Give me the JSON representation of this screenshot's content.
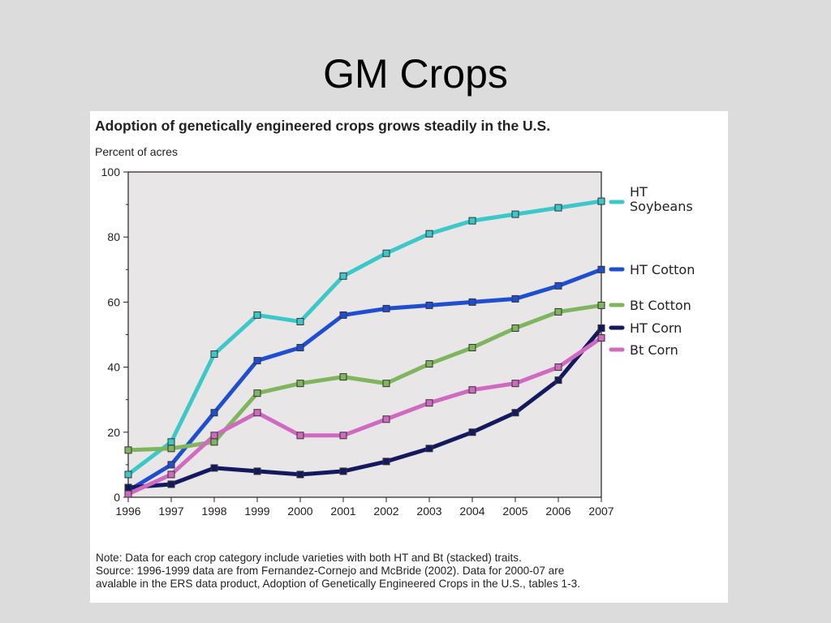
{
  "slide": {
    "title": "GM Crops"
  },
  "figure": {
    "title": "Adoption of genetically engineered crops grows steadily in the U.S.",
    "note_lines": [
      "Note: Data for each crop category include varieties with both HT and Bt (stacked) traits.",
      "Source: 1996-1999 data are from Fernandez-Cornejo and McBride (2002). Data for 2000-07 are",
      "avalable in the ERS data product, Adoption of Genetically Engineered Crops in the U.S., tables 1-3."
    ]
  },
  "chart_data": {
    "type": "line",
    "title": "Adoption of genetically engineered crops grows steadily in the U.S.",
    "ylabel": "Percent of acres",
    "xlabel": "",
    "x": [
      1996,
      1997,
      1998,
      1999,
      2000,
      2001,
      2002,
      2003,
      2004,
      2005,
      2006,
      2007
    ],
    "ylim": [
      0,
      100
    ],
    "yticks": [
      0,
      20,
      40,
      60,
      80,
      100
    ],
    "grid": false,
    "legend_placement": "right",
    "series": [
      {
        "name": "HT Soybeans",
        "color": "#3cc8c8",
        "values": [
          7,
          17,
          44,
          56,
          54,
          68,
          75,
          81,
          85,
          87,
          89,
          91
        ]
      },
      {
        "name": "HT Cotton",
        "color": "#1f4fd0",
        "values": [
          2,
          10,
          26,
          42,
          46,
          56,
          58,
          59,
          60,
          61,
          65,
          70
        ]
      },
      {
        "name": "Bt Cotton",
        "color": "#7fb55e",
        "values": [
          14.5,
          15,
          17,
          32,
          35,
          37,
          35,
          41,
          46,
          52,
          57,
          59
        ]
      },
      {
        "name": "HT Corn",
        "color": "#14185e",
        "values": [
          3,
          4,
          9,
          8,
          7,
          8,
          11,
          15,
          20,
          26,
          36,
          52
        ]
      },
      {
        "name": "Bt Corn",
        "color": "#d06ac0",
        "values": [
          1,
          7,
          19,
          26,
          19,
          19,
          24,
          29,
          33,
          35,
          40,
          49
        ]
      }
    ]
  }
}
